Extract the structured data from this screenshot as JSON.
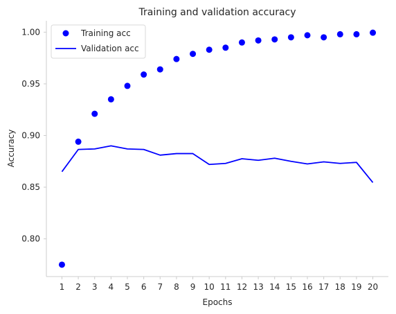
{
  "chart_data": {
    "type": "line",
    "title": "Training and validation accuracy",
    "xlabel": "Epochs",
    "ylabel": "Accuracy",
    "x": [
      1,
      2,
      3,
      4,
      5,
      6,
      7,
      8,
      9,
      10,
      11,
      12,
      13,
      14,
      15,
      16,
      17,
      18,
      19,
      20
    ],
    "x_tick_labels": [
      "1",
      "2",
      "3",
      "4",
      "5",
      "6",
      "7",
      "8",
      "9",
      "10",
      "11",
      "12",
      "13",
      "14",
      "15",
      "16",
      "17",
      "18",
      "19",
      "20"
    ],
    "xlim": [
      0.05,
      20.95
    ],
    "ylim": [
      0.7635,
      1.011
    ],
    "y_ticks": [
      0.8,
      0.85,
      0.9,
      0.95,
      1.0
    ],
    "y_tick_labels": [
      "0.80",
      "0.85",
      "0.90",
      "0.95",
      "1.00"
    ],
    "grid": false,
    "legend_position": "top-left",
    "series": [
      {
        "name": "Training acc",
        "style": "scatter",
        "color": "#0000ff",
        "values": [
          0.775,
          0.894,
          0.921,
          0.935,
          0.948,
          0.959,
          0.964,
          0.974,
          0.979,
          0.983,
          0.985,
          0.99,
          0.992,
          0.993,
          0.995,
          0.997,
          0.995,
          0.998,
          0.998,
          0.9995
        ]
      },
      {
        "name": "Validation acc",
        "style": "line",
        "color": "#0000ff",
        "values": [
          0.865,
          0.8865,
          0.887,
          0.89,
          0.887,
          0.8865,
          0.881,
          0.8825,
          0.8825,
          0.872,
          0.873,
          0.8775,
          0.876,
          0.878,
          0.875,
          0.8725,
          0.8745,
          0.873,
          0.874,
          0.8545
        ]
      }
    ]
  }
}
